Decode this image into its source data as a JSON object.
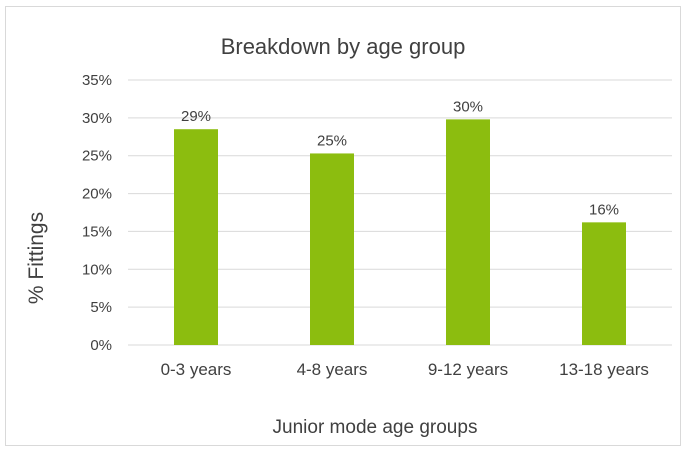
{
  "chart_data": {
    "type": "bar",
    "title": "Breakdown by age group",
    "xlabel": "Junior mode age groups",
    "ylabel": "% Fittings",
    "categories": [
      "0-3 years",
      "4-8 years",
      "9-12 years",
      "13-18 years"
    ],
    "values": [
      28.5,
      25.3,
      29.8,
      16.2
    ],
    "value_labels": [
      "29%",
      "25%",
      "30%",
      "16%"
    ],
    "ylim": [
      0,
      35
    ],
    "yticks": [
      0,
      5,
      10,
      15,
      20,
      25,
      30,
      35
    ],
    "ytick_labels": [
      "0%",
      "5%",
      "10%",
      "15%",
      "20%",
      "25%",
      "30%",
      "35%"
    ],
    "grid": true,
    "legend": "none",
    "bar_color": "#8cbd0f"
  }
}
